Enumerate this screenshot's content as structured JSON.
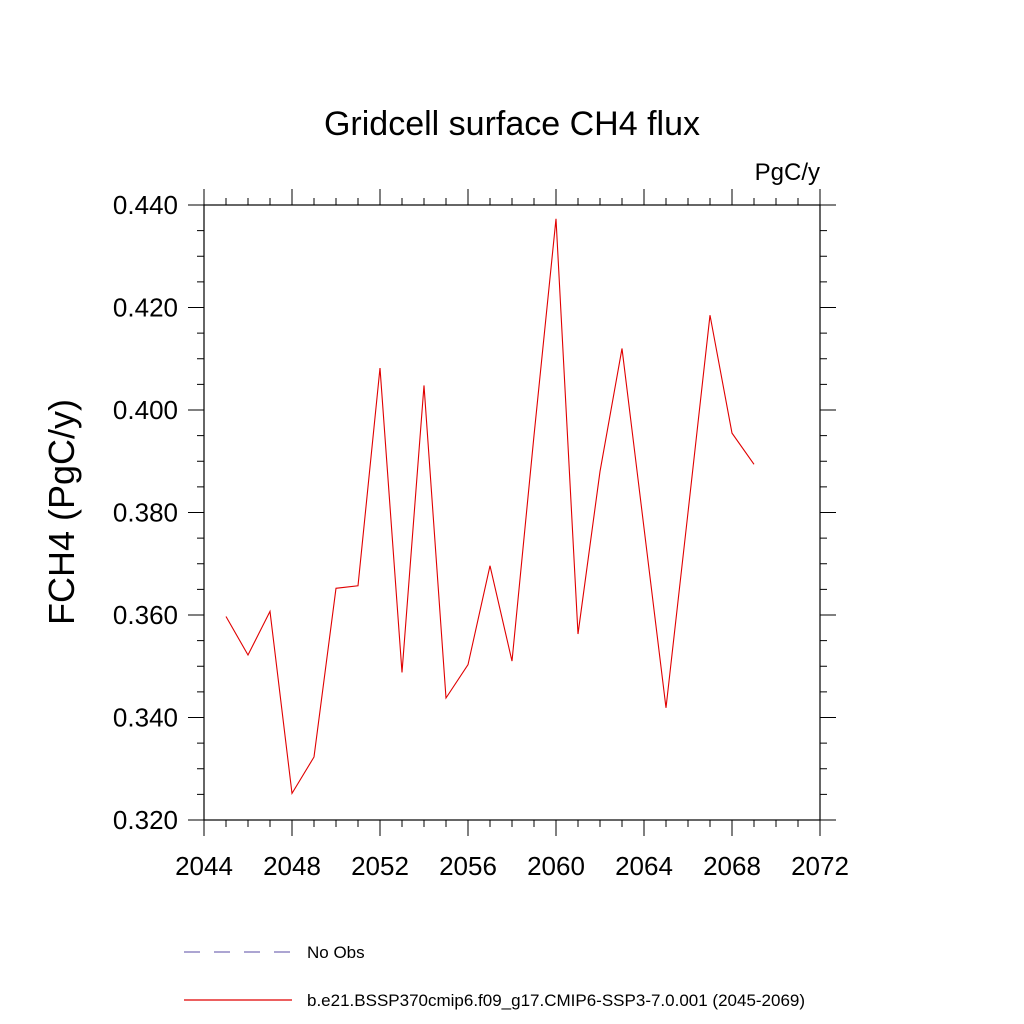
{
  "chart_data": {
    "type": "line",
    "title": "Gridcell surface CH4 flux",
    "units": "PgC/y",
    "xlabel": "",
    "ylabel": "FCH4  (PgC/y)",
    "xlim": [
      2044,
      2072
    ],
    "ylim": [
      0.32,
      0.44
    ],
    "xticks": [
      2044,
      2048,
      2052,
      2056,
      2060,
      2064,
      2068,
      2072
    ],
    "xtick_labels": [
      "2044",
      "2048",
      "2052",
      "2056",
      "2060",
      "2064",
      "2068",
      "2072"
    ],
    "yticks": [
      0.32,
      0.34,
      0.36,
      0.38,
      0.4,
      0.42,
      0.44
    ],
    "ytick_labels": [
      "0.320",
      "0.340",
      "0.360",
      "0.380",
      "0.400",
      "0.420",
      "0.440"
    ],
    "grid": false,
    "legend_position": "bottom",
    "legend": [
      {
        "label": "No Obs",
        "style": "dashed",
        "color": "#7a6fb8"
      },
      {
        "label": "b.e21.BSSP370cmip6.f09_g17.CMIP6-SSP3-7.0.001 (2045-2069)",
        "style": "solid",
        "color": "#e00000"
      }
    ],
    "series": [
      {
        "name": "b.e21.BSSP370cmip6.f09_g17.CMIP6-SSP3-7.0.001 (2045-2069)",
        "color": "#e00000",
        "x": [
          2045,
          2046,
          2047,
          2048,
          2049,
          2050,
          2051,
          2052,
          2053,
          2054,
          2055,
          2056,
          2057,
          2058,
          2059,
          2060,
          2061,
          2062,
          2063,
          2064,
          2065,
          2066,
          2067,
          2068,
          2069
        ],
        "y": [
          0.3597,
          0.3522,
          0.3607,
          0.3252,
          0.3323,
          0.3652,
          0.3657,
          0.4082,
          0.3488,
          0.4048,
          0.3438,
          0.3503,
          0.3696,
          0.351,
          0.395,
          0.4373,
          0.3563,
          0.388,
          0.412,
          0.377,
          0.3419,
          0.38,
          0.4185,
          0.3955,
          0.3894
        ]
      }
    ]
  }
}
